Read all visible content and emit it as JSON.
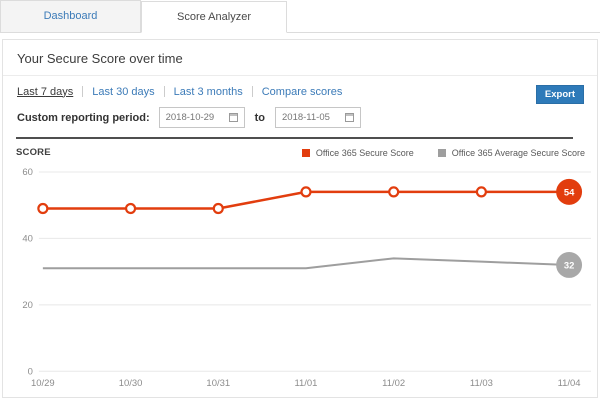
{
  "tabs": [
    {
      "label": "Dashboard",
      "active": false
    },
    {
      "label": "Score Analyzer",
      "active": true
    }
  ],
  "page_title": "Your Secure Score over time",
  "toolbar": {
    "filters": [
      "Last 7 days",
      "Last 30 days",
      "Last 3 months",
      "Compare scores"
    ],
    "active_filter": "Last 7 days",
    "export_label": "Export"
  },
  "custom_period": {
    "label": "Custom reporting period:",
    "start_date": "2018-10-29",
    "to_label": "to",
    "end_date": "2018-11-05"
  },
  "chart_data": {
    "type": "line",
    "title": "SCORE",
    "x": [
      "10/29",
      "10/30",
      "10/31",
      "11/01",
      "11/02",
      "11/03",
      "11/04"
    ],
    "series": [
      {
        "name": "Office 365 Secure Score",
        "values": [
          49,
          49,
          49,
          54,
          54,
          54,
          54
        ],
        "color": "#e23d0e",
        "badge_color": "#e23d0e",
        "markers": true,
        "end_badge": "54",
        "line_width": 2.5
      },
      {
        "name": "Office 365 Average Secure Score",
        "values": [
          31,
          31,
          31,
          31,
          34,
          33,
          32
        ],
        "color": "#9e9e9e",
        "badge_color": "#a8a8a8",
        "markers": false,
        "end_badge": "32",
        "line_width": 2
      }
    ],
    "ylim": [
      0,
      60
    ],
    "yticks": [
      60,
      40,
      20,
      0
    ],
    "grid": true,
    "legend_position": "top-right"
  },
  "colors": {
    "link_blue": "#3c7bb8",
    "button_blue": "#2e7ab9",
    "series_red": "#e23d0e",
    "series_gray": "#9e9e9e",
    "badge_gray": "#a8a8a8",
    "grid_line": "#e8e8e8",
    "axis_text": "#8c8c8c"
  }
}
